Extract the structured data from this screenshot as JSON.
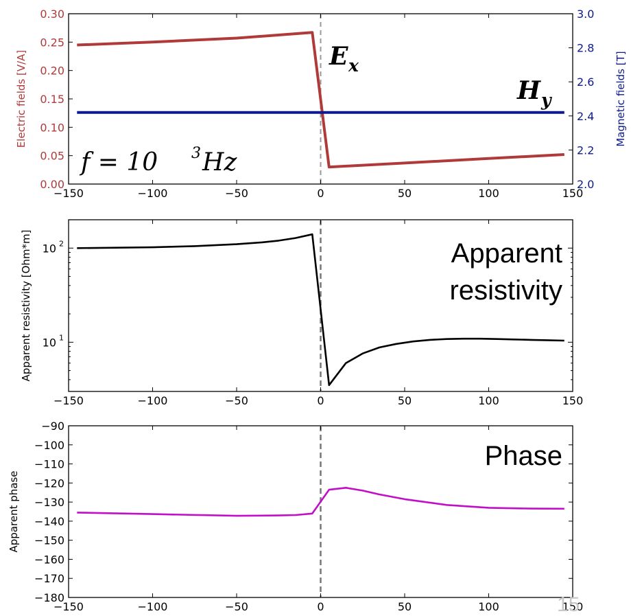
{
  "page_number": "15",
  "chart_data": [
    {
      "type": "line",
      "xlim": [
        -150,
        150
      ],
      "x_ticks": [
        "−150",
        "−100",
        "−50",
        "0",
        "50",
        "100",
        "150"
      ],
      "ylabel": "Electric fields [V/A]",
      "ylim": [
        0,
        0.3
      ],
      "y_ticks": [
        "0.00",
        "0.05",
        "0.10",
        "0.15",
        "0.20",
        "0.25",
        "0.30"
      ],
      "y2label": "Magnetic fields [T]",
      "y2lim": [
        2.0,
        3.0
      ],
      "y2_ticks": [
        "2.0",
        "2.2",
        "2.4",
        "2.6",
        "2.8",
        "3.0"
      ],
      "vertical_line_x": 0,
      "colors": {
        "ex": "#b03a3a",
        "hy": "#0c1a8c",
        "left_axis": "#b03a3a",
        "right_axis": "#0c1a8c"
      },
      "annotations": {
        "ex_var": "E",
        "ex_sub": "x",
        "hy_var": "H",
        "hy_sub": "y",
        "freq_lhs": "f = 10",
        "freq_exp": "3",
        "freq_unit": "Hz"
      },
      "series": [
        {
          "axis": "left",
          "color": "#b03a3a",
          "x": [
            -145,
            -100,
            -50,
            -5,
            5,
            50,
            100,
            145
          ],
          "y": [
            0.245,
            0.25,
            0.257,
            0.267,
            0.03,
            0.037,
            0.045,
            0.052
          ]
        },
        {
          "axis": "right",
          "color": "#0c1a8c",
          "x": [
            -145,
            145
          ],
          "y": [
            2.42,
            2.42
          ]
        }
      ]
    },
    {
      "type": "line",
      "xlim": [
        -150,
        150
      ],
      "x_ticks": [
        "−150",
        "−100",
        "−50",
        "0",
        "50",
        "100",
        "150"
      ],
      "ylabel": "Apparent resistivity [Ohm*m]",
      "yscale": "log",
      "ylim": [
        3,
        200
      ],
      "y_ticks": [
        {
          "base": "10",
          "exp": "2",
          "value": 100
        },
        {
          "base": "10",
          "exp": "1",
          "value": 10
        }
      ],
      "vertical_line_x": 0,
      "annotation_lines": [
        "Apparent",
        "resistivity"
      ],
      "series": [
        {
          "color": "#000000",
          "x": [
            -145,
            -100,
            -75,
            -50,
            -35,
            -25,
            -15,
            -5,
            5,
            15,
            25,
            35,
            45,
            55,
            65,
            75,
            85,
            95,
            105,
            115,
            125,
            135,
            145
          ],
          "y": [
            100,
            102,
            105,
            110,
            115,
            120,
            128,
            140,
            3.5,
            6.0,
            7.6,
            8.8,
            9.6,
            10.2,
            10.6,
            10.8,
            10.9,
            10.9,
            10.8,
            10.7,
            10.6,
            10.5,
            10.4
          ]
        }
      ]
    },
    {
      "type": "line",
      "xlim": [
        -150,
        150
      ],
      "x_ticks": [
        "−150",
        "−100",
        "−50",
        "0",
        "50",
        "100",
        "150"
      ],
      "ylabel": "Apparent phase",
      "ylim": [
        -180,
        -90
      ],
      "y_ticks": [
        "−90",
        "−100",
        "−110",
        "−120",
        "−130",
        "−140",
        "−150",
        "−160",
        "−170",
        "−180"
      ],
      "vertical_line_x": 0,
      "annotation_lines": [
        "Phase"
      ],
      "series": [
        {
          "color": "#c20ec7",
          "x": [
            -145,
            -100,
            -50,
            -25,
            -15,
            -5,
            5,
            15,
            25,
            35,
            50,
            75,
            100,
            125,
            145
          ],
          "y": [
            -135.5,
            -136.3,
            -137.2,
            -137.0,
            -136.8,
            -136.0,
            -123.5,
            -122.5,
            -124,
            -126,
            -128.5,
            -131.5,
            -133,
            -133.4,
            -133.5
          ]
        }
      ]
    }
  ]
}
